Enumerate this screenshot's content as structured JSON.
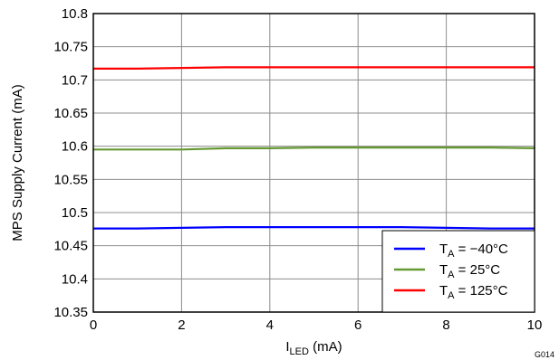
{
  "chart_data": {
    "type": "line",
    "xlabel": {
      "main": "I",
      "sub": "LED",
      "unit": " (mA)"
    },
    "ylabel": "MPS Supply Current (mA)",
    "xlim": [
      0,
      10
    ],
    "ylim": [
      10.35,
      10.8
    ],
    "x_ticks": [
      0,
      2,
      4,
      6,
      8,
      10
    ],
    "x_tick_labels": [
      "0",
      "2",
      "4",
      "6",
      "8",
      "10"
    ],
    "y_ticks": [
      10.35,
      10.4,
      10.45,
      10.5,
      10.55,
      10.6,
      10.65,
      10.7,
      10.75,
      10.8
    ],
    "y_tick_labels": [
      "10.35",
      "10.4",
      "10.45",
      "10.5",
      "10.55",
      "10.6",
      "10.65",
      "10.7",
      "10.75",
      "10.8"
    ],
    "grid": true,
    "legend_position": "bottom-right",
    "series": [
      {
        "label_main": "T",
        "label_sub": "A",
        "label_rest": " = −40°C",
        "color": "#0000ff",
        "x": [
          0,
          1,
          2,
          3,
          4,
          5,
          6,
          7,
          8,
          9,
          10
        ],
        "y": [
          10.476,
          10.476,
          10.477,
          10.478,
          10.478,
          10.478,
          10.478,
          10.478,
          10.477,
          10.476,
          10.476
        ]
      },
      {
        "label_main": "T",
        "label_sub": "A",
        "label_rest": " = 25°C",
        "color": "#669933",
        "x": [
          0,
          1,
          2,
          3,
          4,
          5,
          6,
          7,
          8,
          9,
          10
        ],
        "y": [
          10.595,
          10.595,
          10.595,
          10.597,
          10.597,
          10.598,
          10.598,
          10.598,
          10.598,
          10.598,
          10.597
        ]
      },
      {
        "label_main": "T",
        "label_sub": "A",
        "label_rest": " = 125°C",
        "color": "#ff0000",
        "x": [
          0,
          1,
          2,
          3,
          4,
          5,
          6,
          7,
          8,
          9,
          10
        ],
        "y": [
          10.717,
          10.717,
          10.718,
          10.719,
          10.719,
          10.719,
          10.719,
          10.719,
          10.719,
          10.719,
          10.719
        ]
      }
    ]
  },
  "figure_id": "G014"
}
